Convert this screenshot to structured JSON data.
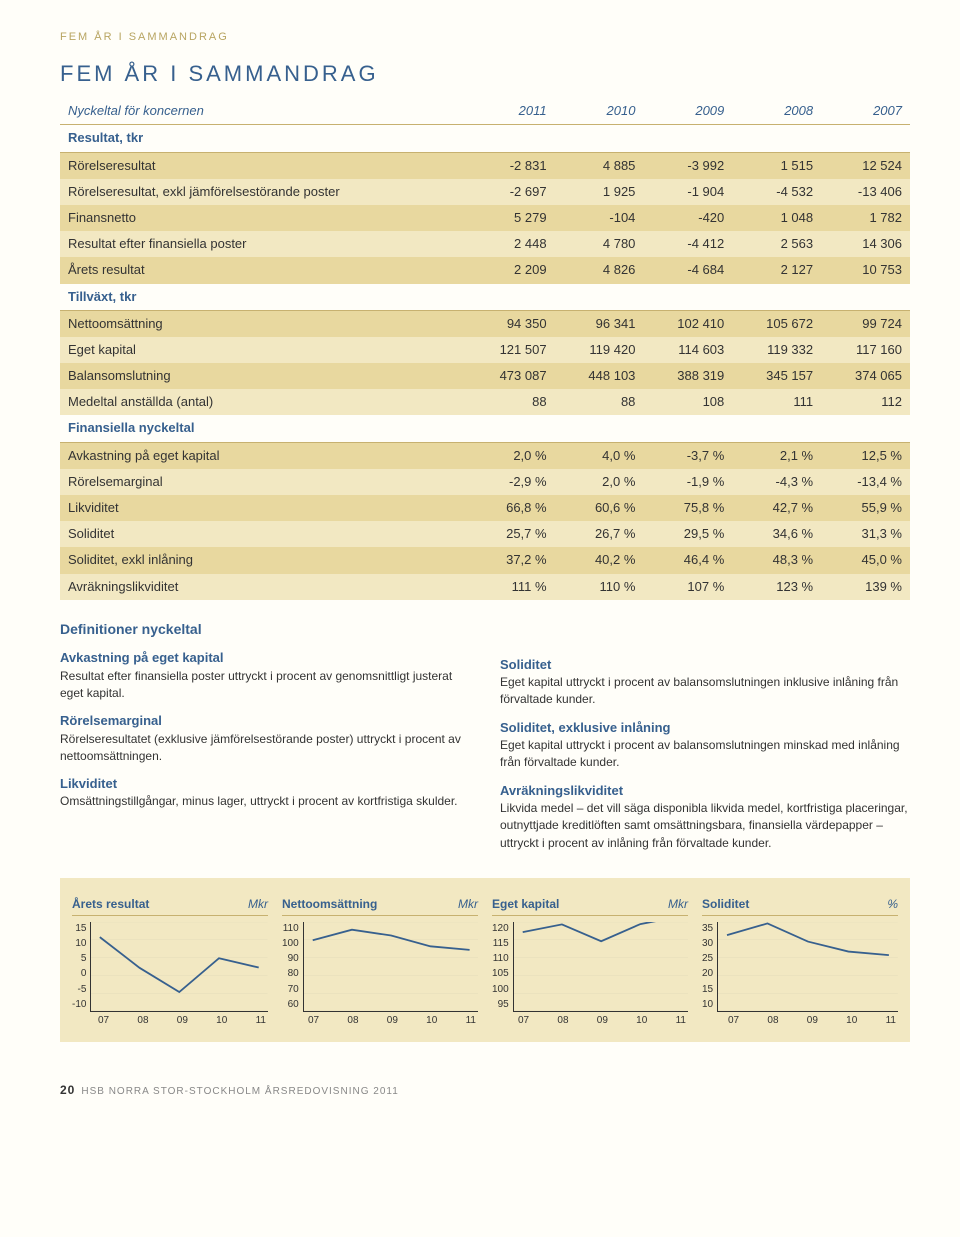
{
  "page_header": "FEM ÅR I SAMMANDRAG",
  "title": "FEM ÅR I SAMMANDRAG",
  "years": [
    "2011",
    "2010",
    "2009",
    "2008",
    "2007"
  ],
  "sections": [
    {
      "label": "Nyckeltal för koncernen",
      "header": true
    },
    {
      "cls": "sec",
      "label": "Resultat, tkr"
    },
    {
      "cls": "band-dark",
      "cells": [
        "Rörelseresultat",
        "-2 831",
        "4 885",
        "-3 992",
        "1 515",
        "12 524"
      ]
    },
    {
      "cls": "band-light",
      "cells": [
        "Rörelseresultat, exkl jämförelsestörande poster",
        "-2 697",
        "1 925",
        "-1 904",
        "-4 532",
        "-13 406"
      ]
    },
    {
      "cls": "band-dark",
      "cells": [
        "Finansnetto",
        "5 279",
        "-104",
        "-420",
        "1 048",
        "1 782"
      ]
    },
    {
      "cls": "band-light",
      "cells": [
        "Resultat efter finansiella poster",
        "2 448",
        "4 780",
        "-4 412",
        "2 563",
        "14 306"
      ]
    },
    {
      "cls": "band-dark",
      "cells": [
        "Årets resultat",
        "2 209",
        "4 826",
        "-4 684",
        "2 127",
        "10 753"
      ]
    },
    {
      "cls": "sec",
      "label": "Tillväxt, tkr"
    },
    {
      "cls": "band-dark",
      "cells": [
        "Nettoomsättning",
        "94 350",
        "96 341",
        "102 410",
        "105 672",
        "99 724"
      ]
    },
    {
      "cls": "band-light",
      "cells": [
        "Eget kapital",
        "121 507",
        "119 420",
        "114 603",
        "119 332",
        "117 160"
      ]
    },
    {
      "cls": "band-dark",
      "cells": [
        "Balansomslutning",
        "473 087",
        "448 103",
        "388 319",
        "345 157",
        "374 065"
      ]
    },
    {
      "cls": "band-light",
      "cells": [
        "Medeltal anställda (antal)",
        "88",
        "88",
        "108",
        "111",
        "112"
      ]
    },
    {
      "cls": "sec",
      "label": "Finansiella nyckeltal"
    },
    {
      "cls": "band-dark",
      "cells": [
        "Avkastning på eget kapital",
        "2,0 %",
        "4,0 %",
        "-3,7 %",
        "2,1 %",
        "12,5 %"
      ]
    },
    {
      "cls": "band-light",
      "cells": [
        "Rörelsemarginal",
        "-2,9 %",
        "2,0 %",
        "-1,9 %",
        "-4,3 %",
        "-13,4 %"
      ]
    },
    {
      "cls": "band-dark",
      "cells": [
        "Likviditet",
        "66,8 %",
        "60,6 %",
        "75,8 %",
        "42,7 %",
        "55,9 %"
      ]
    },
    {
      "cls": "band-light",
      "cells": [
        "Soliditet",
        "25,7 %",
        "26,7 %",
        "29,5 %",
        "34,6 %",
        "31,3 %"
      ]
    },
    {
      "cls": "band-dark",
      "cells": [
        "Soliditet, exkl inlåning",
        "37,2 %",
        "40,2 %",
        "46,4 %",
        "48,3 %",
        "45,0 %"
      ]
    },
    {
      "cls": "band-light",
      "cells": [
        "Avräkningslikviditet",
        "111 %",
        "110 %",
        "107 %",
        "123 %",
        "139 %"
      ]
    }
  ],
  "defs_title": "Definitioner nyckeltal",
  "defs": [
    [
      {
        "h": "Avkastning på eget kapital",
        "p": "Resultat efter finansiella poster uttryckt i procent av genomsnittligt justerat eget kapital."
      },
      {
        "h": "Rörelsemarginal",
        "p": "Rörelseresultatet (exklusive jämförelsestörande poster) uttryckt i procent av nettoomsättningen."
      },
      {
        "h": "Likviditet",
        "p": "Omsättningstillgångar, minus lager, uttryckt i procent av kortfristiga skulder."
      }
    ],
    [
      {
        "h": "Soliditet",
        "p": "Eget kapital uttryckt i procent av balansomslutningen inklusive inlåning från förvaltade kunder."
      },
      {
        "h": "Soliditet, exklusive inlåning",
        "p": "Eget kapital uttryckt i procent av balansomslutningen minskad med inlåning från förvaltade kunder."
      },
      {
        "h": "Avräkningslikviditet",
        "p": "Likvida medel – det vill säga disponibla likvida medel, kortfristiga placeringar, outnyttjade kreditlöften samt omsättningsbara, finansiella värdepapper – uttryckt i procent av inlåning från förvaltade kunder."
      }
    ]
  ],
  "charts": [
    {
      "title": "Årets resultat",
      "unit": "Mkr",
      "ymin": -10,
      "ymax": 15,
      "ystep": 5,
      "x": [
        "07",
        "08",
        "09",
        "10",
        "11"
      ],
      "values": [
        10.753,
        2.127,
        -4.684,
        4.826,
        2.209
      ],
      "color": "#37608e"
    },
    {
      "title": "Nettoomsättning",
      "unit": "Mkr",
      "ymin": 60,
      "ymax": 110,
      "ystep": 10,
      "x": [
        "07",
        "08",
        "09",
        "10",
        "11"
      ],
      "values": [
        99.724,
        105.672,
        102.41,
        96.341,
        94.35
      ],
      "color": "#37608e"
    },
    {
      "title": "Eget kapital",
      "unit": "Mkr",
      "ymin": 95,
      "ymax": 120,
      "ystep": 5,
      "x": [
        "07",
        "08",
        "09",
        "10",
        "11"
      ],
      "values": [
        117.16,
        119.332,
        114.603,
        119.42,
        121.507
      ],
      "color": "#37608e"
    },
    {
      "title": "Soliditet",
      "unit": "%",
      "ymin": 10,
      "ymax": 35,
      "ystep": 5,
      "x": [
        "07",
        "08",
        "09",
        "10",
        "11"
      ],
      "values": [
        31.3,
        34.6,
        29.5,
        26.7,
        25.7
      ],
      "color": "#37608e"
    }
  ],
  "footer_page": "20",
  "footer_text": "HSB NORRA STOR-STOCKHOLM ÅRSREDOVISNING 2011"
}
